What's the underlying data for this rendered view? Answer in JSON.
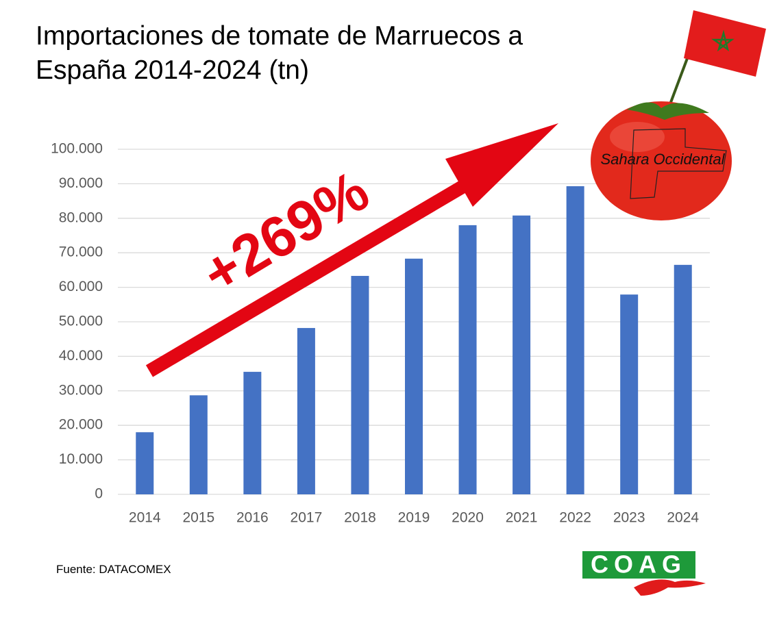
{
  "chart_data": {
    "type": "bar",
    "title": "Importaciones de tomate de Marruecos a España 2014-2024 (tn)",
    "categories": [
      "2014",
      "2015",
      "2016",
      "2017",
      "2018",
      "2019",
      "2020",
      "2021",
      "2022",
      "2023",
      "2024"
    ],
    "values": [
      18000,
      28700,
      35500,
      48200,
      63300,
      68300,
      78000,
      80800,
      89300,
      57900,
      66500
    ],
    "color": "#4472c4",
    "ylim": [
      0,
      100000
    ],
    "yticks": [
      0,
      {
        "value": 10000,
        "label": "10.000"
      },
      {
        "value": 20000,
        "label": "20.000"
      },
      {
        "value": 30000,
        "label": "30.000"
      },
      {
        "value": 40000,
        "label": "40.000"
      },
      {
        "value": 50000,
        "label": "50.000"
      },
      {
        "value": 60000,
        "label": "60.000"
      },
      {
        "value": 70000,
        "label": "70.000"
      },
      {
        "value": 80000,
        "label": "80.000"
      },
      {
        "value": 90000,
        "label": "90.000"
      },
      {
        "value": 100000,
        "label": "100.000"
      }
    ],
    "grid": true,
    "annotation": "+269%",
    "image_label": "Sahara Occidental",
    "source": "Fuente: DATACOMEX",
    "logo": "COAG"
  }
}
